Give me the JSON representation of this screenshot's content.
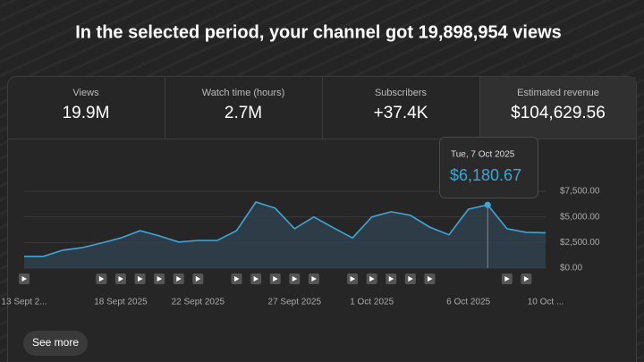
{
  "title": "In the selected period, your channel got 19,898,954 views",
  "metrics": [
    {
      "label": "Views",
      "value": "19.9M"
    },
    {
      "label": "Watch time (hours)",
      "value": "2.7M"
    },
    {
      "label": "Subscribers",
      "value": "+37.4K"
    },
    {
      "label": "Estimated revenue",
      "value": "$104,629.56"
    }
  ],
  "tooltip": {
    "date": "Tue, 7 Oct 2025"
  },
  "button": "See more",
  "chart_data": {
    "type": "line",
    "categories": [
      "13 Sept 2...",
      null,
      null,
      null,
      null,
      "18 Sept 2025",
      null,
      null,
      null,
      "22 Sept 2025",
      null,
      null,
      null,
      null,
      "27 Sept 2025",
      null,
      null,
      null,
      "1 Oct 2025",
      null,
      null,
      null,
      null,
      "6 Oct 2025",
      null,
      null,
      null,
      "10 Oct ..."
    ],
    "values": [
      1150,
      1150,
      1750,
      2000,
      2450,
      2950,
      3650,
      3150,
      2550,
      2700,
      2700,
      3650,
      6450,
      5850,
      3850,
      5000,
      3950,
      2950,
      5000,
      5500,
      5150,
      4000,
      3250,
      5750,
      6180.67,
      3850,
      3500,
      3450
    ],
    "value_labels": [
      null,
      null,
      null,
      null,
      null,
      null,
      null,
      null,
      null,
      null,
      null,
      null,
      null,
      null,
      null,
      null,
      null,
      null,
      null,
      null,
      null,
      null,
      null,
      null,
      "$6,180.67",
      null,
      null,
      null
    ],
    "color": "#3ea6d8",
    "ylim": [
      0,
      7500
    ],
    "yticks": [
      {
        "value": 0,
        "label": "$0.00"
      },
      {
        "value": 2500,
        "label": "$2,500.00"
      },
      {
        "value": 5000,
        "label": "$5,000.00"
      },
      {
        "value": 7500,
        "label": "$7,500.00"
      }
    ],
    "grid": true
  }
}
